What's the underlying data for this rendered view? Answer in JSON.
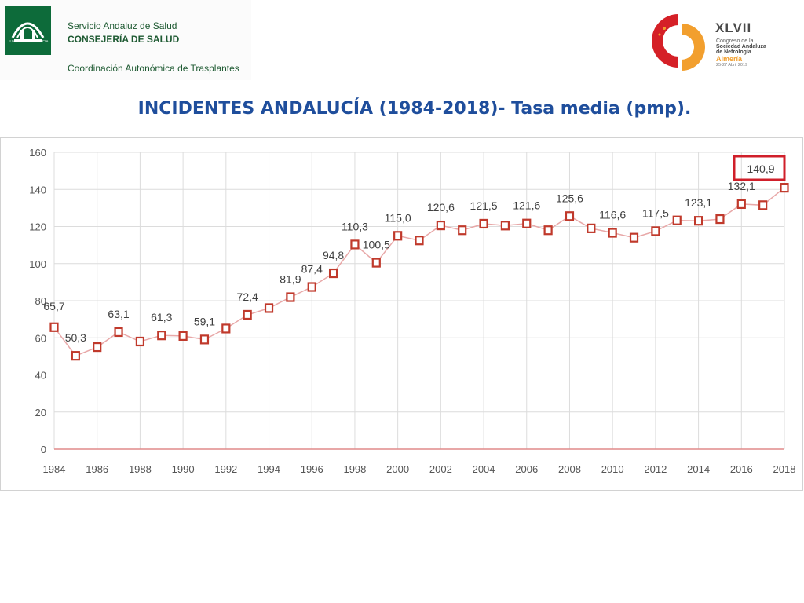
{
  "header": {
    "left_logo": {
      "emblem_caption": "JUNTA DE ANDALUCIA",
      "line1": "Servicio Andaluz de Salud",
      "line2": "CONSEJERÍA DE SALUD",
      "line3": "Coordinación Autonómica de Trasplantes",
      "brand_color": "#0d6b3a"
    },
    "right_logo": {
      "roman": "XLVII",
      "line1": "Congreso de la",
      "line2": "Sociedad Andaluza",
      "line3": "de Nefrología",
      "city": "Almería",
      "date": "25-27 Abril 2019",
      "colors": {
        "red": "#d52027",
        "orange": "#f29f2e"
      }
    }
  },
  "slide": {
    "title": "INCIDENTES ANDALUCÍA (1984-2018)- Tasa media (pmp).",
    "title_color": "#1f4e9c"
  },
  "chart_data": {
    "type": "line",
    "title": "",
    "xlabel": "",
    "ylabel": "",
    "x": [
      1984,
      1985,
      1986,
      1987,
      1988,
      1989,
      1990,
      1991,
      1992,
      1993,
      1994,
      1995,
      1996,
      1997,
      1998,
      1999,
      2000,
      2001,
      2002,
      2003,
      2004,
      2005,
      2006,
      2007,
      2008,
      2009,
      2010,
      2011,
      2012,
      2013,
      2014,
      2015,
      2016,
      2017,
      2018
    ],
    "values": [
      65.7,
      50.3,
      55,
      63.1,
      58,
      61.3,
      61,
      59.1,
      65,
      72.4,
      76,
      81.9,
      87.4,
      94.8,
      110.3,
      100.5,
      115.0,
      112.5,
      120.6,
      118,
      121.5,
      120.5,
      121.6,
      118,
      125.6,
      119,
      116.6,
      114,
      117.5,
      123.3,
      123.1,
      124,
      132.1,
      131.5,
      140.9
    ],
    "data_labels": [
      {
        "x": 1984,
        "text": "65,7"
      },
      {
        "x": 1985,
        "text": "50,3"
      },
      {
        "x": 1987,
        "text": "63,1"
      },
      {
        "x": 1989,
        "text": "61,3"
      },
      {
        "x": 1991,
        "text": "59,1"
      },
      {
        "x": 1993,
        "text": "72,4"
      },
      {
        "x": 1995,
        "text": "81,9"
      },
      {
        "x": 1996,
        "text": "87,4"
      },
      {
        "x": 1997,
        "text": "94,8"
      },
      {
        "x": 1998,
        "text": "110,3"
      },
      {
        "x": 1999,
        "text": "100,5"
      },
      {
        "x": 2000,
        "text": "115,0"
      },
      {
        "x": 2002,
        "text": "120,6"
      },
      {
        "x": 2004,
        "text": "121,5"
      },
      {
        "x": 2006,
        "text": "121,6"
      },
      {
        "x": 2008,
        "text": "125,6"
      },
      {
        "x": 2010,
        "text": "116,6"
      },
      {
        "x": 2012,
        "text": "117,5"
      },
      {
        "x": 2014,
        "text": "123,1"
      },
      {
        "x": 2016,
        "text": "132,1"
      },
      {
        "x": 2018,
        "text": "140,9",
        "highlight": true
      }
    ],
    "x_ticks": [
      1984,
      1986,
      1988,
      1990,
      1992,
      1994,
      1996,
      1998,
      2000,
      2002,
      2004,
      2006,
      2008,
      2010,
      2012,
      2014,
      2016,
      2018
    ],
    "y_ticks": [
      0,
      20,
      40,
      60,
      80,
      100,
      120,
      140,
      160
    ],
    "ylim": [
      0,
      160
    ],
    "xlim": [
      1984,
      2018
    ],
    "grid": true,
    "colors": {
      "line": "#e8a8a8",
      "marker": "#c0392b",
      "highlight_box": "#d01f2a",
      "baseline": "#e08a8a",
      "grid": "#dcdcdc"
    }
  }
}
